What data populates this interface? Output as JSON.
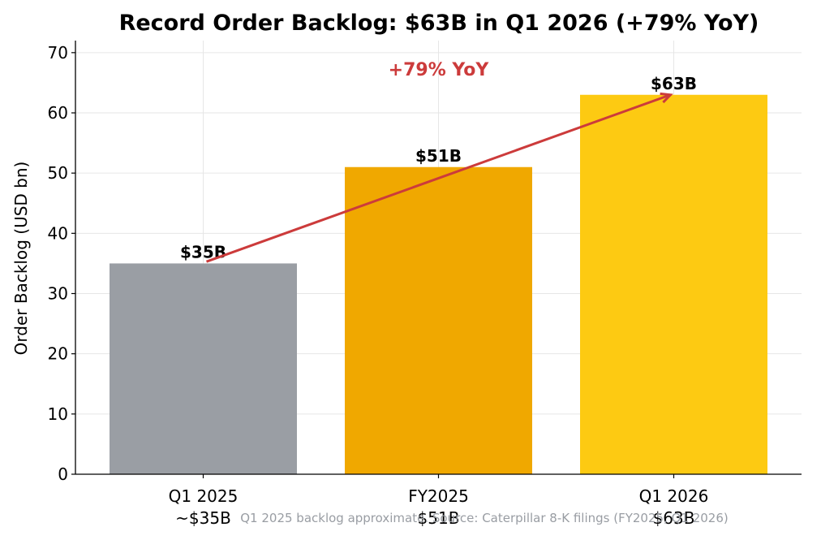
{
  "chart_data": {
    "type": "bar",
    "title": "Record Order Backlog: $63B in Q1 2026 (+79% YoY)",
    "xlabel": "",
    "ylabel": "Order Backlog (USD bn)",
    "ylim": [
      0,
      72
    ],
    "yticks": [
      0,
      10,
      20,
      30,
      40,
      50,
      60,
      70
    ],
    "grid": true,
    "categories": [
      [
        "Q1 2025",
        "~$35B"
      ],
      [
        "FY2025",
        "$51B"
      ],
      [
        "Q1 2026",
        "$63B"
      ]
    ],
    "values": [
      35,
      51,
      63
    ],
    "bar_colors": [
      "#9a9ea4",
      "#f0a800",
      "#fdca12"
    ],
    "data_labels": [
      "$35B",
      "$51B",
      "$63B"
    ],
    "annotation": {
      "text": "+79% YoY",
      "color": "#cc3b3b",
      "arrow_from": {
        "category": "Q1 2025",
        "y": 35.3
      },
      "arrow_to": {
        "category": "Q1 2026",
        "y": 63
      }
    },
    "footnote": "Q1 2025 backlog approximate. Source: Caterpillar 8-K filings (FY2025, Q1 2026)"
  }
}
